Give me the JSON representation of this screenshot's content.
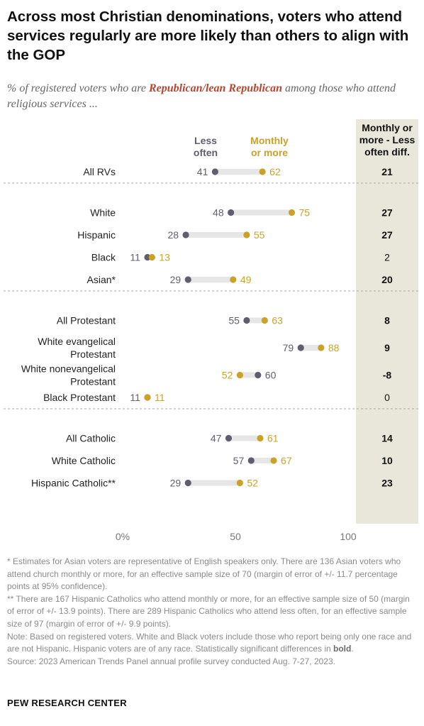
{
  "title": "Across most Christian denominations, voters who attend services regularly are more likely than others to align with the GOP",
  "subtitle": {
    "before": "% of registered voters who are ",
    "highlight": "Republican/lean Republican",
    "after": " among those who attend religious services ..."
  },
  "colors": {
    "less_often": "#5f5d6e",
    "monthly_or_more": "#c9a227",
    "connector": "#e6e6e6",
    "diff_column_bg": "#e8e7da",
    "subtitle_highlight": "#b5452e"
  },
  "chart_data": {
    "type": "dot",
    "legend": {
      "less_often": [
        "Less",
        "often"
      ],
      "monthly_or_more": [
        "Monthly",
        "or more"
      ]
    },
    "diff_header": [
      "Monthly or",
      "more - Less",
      "often diff."
    ],
    "xlim": [
      0,
      100
    ],
    "x_ticks": [
      "0%",
      "50",
      "100"
    ],
    "x_tick_values": [
      0,
      50,
      100
    ],
    "groups": [
      {
        "rows": [
          {
            "label": [
              "All RVs"
            ],
            "less": 41,
            "monthly": 62,
            "diff": "21",
            "bold": true
          }
        ]
      },
      {
        "rows": [
          {
            "label": [
              "White"
            ],
            "less": 48,
            "monthly": 75,
            "diff": "27",
            "bold": true
          },
          {
            "label": [
              "Hispanic"
            ],
            "less": 28,
            "monthly": 55,
            "diff": "27",
            "bold": true
          },
          {
            "label": [
              "Black"
            ],
            "less": 11,
            "monthly": 13,
            "diff": "2",
            "bold": false
          },
          {
            "label": [
              "Asian*"
            ],
            "less": 29,
            "monthly": 49,
            "diff": "20",
            "bold": true
          }
        ]
      },
      {
        "rows": [
          {
            "label": [
              "All Protestant"
            ],
            "less": 55,
            "monthly": 63,
            "diff": "8",
            "bold": true
          },
          {
            "label": [
              "White evangelical",
              "Protestant"
            ],
            "less": 79,
            "monthly": 88,
            "diff": "9",
            "bold": true
          },
          {
            "label": [
              "White nonevangelical",
              "Protestant"
            ],
            "less": 60,
            "monthly": 52,
            "diff": "-8",
            "bold": true
          },
          {
            "label": [
              "Black Protestant"
            ],
            "less": 11,
            "monthly": 11,
            "diff": "0",
            "bold": false
          }
        ]
      },
      {
        "rows": [
          {
            "label": [
              "All Catholic"
            ],
            "less": 47,
            "monthly": 61,
            "diff": "14",
            "bold": true
          },
          {
            "label": [
              "White Catholic"
            ],
            "less": 57,
            "monthly": 67,
            "diff": "10",
            "bold": true
          },
          {
            "label": [
              "Hispanic Catholic**"
            ],
            "less": 29,
            "monthly": 52,
            "diff": "23",
            "bold": true
          }
        ]
      }
    ]
  },
  "notes": {
    "asian": "* Estimates for Asian voters are representative of English speakers only. There are 136 Asian voters who attend church monthly or more, for an effective sample size of 70 (margin of error of +/- 11.7 percentage points at 95% confidence).",
    "hispanic_catholic": "** There are 167 Hispanic Catholics who attend monthly or more, for an effective sample size of 50 (margin of error of +/- 13.9 points). There are 289 Hispanic Catholics who attend less often, for an effective sample size of 97 (margin of error of +/- 9.9 points).",
    "note_before": "Note: Based on registered voters. White and Black voters include those who report being only one race and are not Hispanic. Hispanic voters are of any race. Statistically significant differences in ",
    "note_bold": "bold",
    "note_after": ".",
    "source": "Source: 2023 American Trends Panel annual profile survey conducted Aug. 7-27, 2023."
  },
  "footer": "PEW RESEARCH CENTER"
}
